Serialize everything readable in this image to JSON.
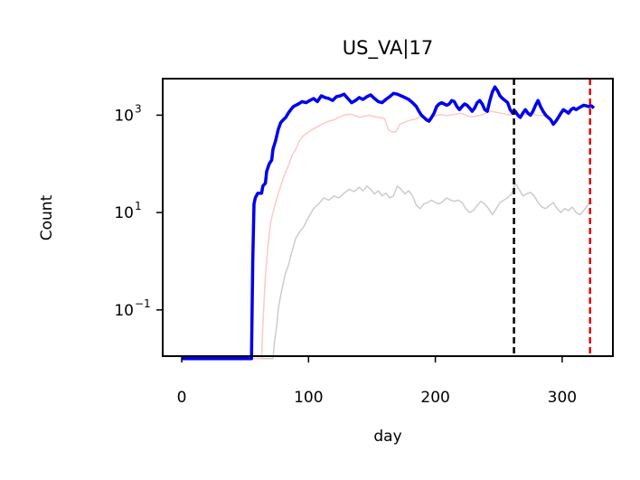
{
  "chart_data": {
    "type": "line",
    "title": "US_VA|17",
    "xlabel": "day",
    "ylabel": "Count",
    "x_ticks": [
      0,
      100,
      200,
      300
    ],
    "y_ticks": [
      {
        "value": 0.1,
        "base": "10",
        "exp": "−1"
      },
      {
        "value": 10,
        "base": "10",
        "exp": "1"
      },
      {
        "value": 1000,
        "base": "10",
        "exp": "3"
      }
    ],
    "xlim": [
      -15,
      340
    ],
    "ylim_log10": [
      -1.95,
      3.75
    ],
    "yscale": "log",
    "grid": false,
    "vlines": [
      {
        "x": 262,
        "color": "#000000",
        "style": "dashed"
      },
      {
        "x": 322,
        "color": "#e00000",
        "style": "dashed"
      }
    ],
    "series": [
      {
        "color": "#cccccc",
        "width": 1.5,
        "points": [
          [
            0,
            0.01
          ],
          [
            72,
            0.01
          ],
          [
            73,
            0.02
          ],
          [
            75,
            0.05
          ],
          [
            76,
            0.1
          ],
          [
            78,
            0.2
          ],
          [
            80,
            0.35
          ],
          [
            82,
            0.6
          ],
          [
            84,
            0.8
          ],
          [
            86,
            1.3
          ],
          [
            88,
            2
          ],
          [
            90,
            3
          ],
          [
            93,
            4
          ],
          [
            96,
            5
          ],
          [
            100,
            8
          ],
          [
            104,
            12
          ],
          [
            108,
            15
          ],
          [
            112,
            20
          ],
          [
            116,
            18
          ],
          [
            120,
            22
          ],
          [
            124,
            20
          ],
          [
            128,
            25
          ],
          [
            132,
            30
          ],
          [
            136,
            27
          ],
          [
            140,
            33
          ],
          [
            143,
            28
          ],
          [
            146,
            35
          ],
          [
            149,
            30
          ],
          [
            152,
            24
          ],
          [
            155,
            28
          ],
          [
            158,
            22
          ],
          [
            161,
            25
          ],
          [
            164,
            20
          ],
          [
            167,
            22
          ],
          [
            170,
            35
          ],
          [
            173,
            30
          ],
          [
            176,
            24
          ],
          [
            179,
            28
          ],
          [
            182,
            22
          ],
          [
            185,
            14
          ],
          [
            188,
            12
          ],
          [
            191,
            15
          ],
          [
            194,
            16
          ],
          [
            197,
            18
          ],
          [
            200,
            16
          ],
          [
            203,
            15
          ],
          [
            206,
            17
          ],
          [
            209,
            20
          ],
          [
            212,
            18
          ],
          [
            215,
            17
          ],
          [
            218,
            18
          ],
          [
            221,
            16
          ],
          [
            224,
            12
          ],
          [
            227,
            10
          ],
          [
            230,
            11
          ],
          [
            233,
            14
          ],
          [
            236,
            17
          ],
          [
            239,
            15
          ],
          [
            242,
            12
          ],
          [
            245,
            9
          ],
          [
            248,
            12
          ],
          [
            251,
            16
          ],
          [
            254,
            18
          ],
          [
            257,
            20
          ],
          [
            260,
            24
          ],
          [
            263,
            40
          ],
          [
            266,
            30
          ],
          [
            269,
            22
          ],
          [
            272,
            24
          ],
          [
            275,
            26
          ],
          [
            278,
            22
          ],
          [
            281,
            16
          ],
          [
            284,
            13
          ],
          [
            287,
            12
          ],
          [
            290,
            14
          ],
          [
            293,
            16
          ],
          [
            296,
            12
          ],
          [
            299,
            10
          ],
          [
            302,
            12
          ],
          [
            305,
            11
          ],
          [
            308,
            13
          ],
          [
            311,
            10
          ],
          [
            314,
            9
          ],
          [
            317,
            11
          ],
          [
            320,
            14
          ],
          [
            322,
            16
          ],
          [
            324,
            15
          ]
        ]
      },
      {
        "color": "#ffc8c8",
        "width": 1.5,
        "points": [
          [
            0,
            0.01
          ],
          [
            63,
            0.01
          ],
          [
            64,
            0.05
          ],
          [
            66,
            0.5
          ],
          [
            68,
            2
          ],
          [
            70,
            6
          ],
          [
            72,
            10
          ],
          [
            75,
            20
          ],
          [
            78,
            35
          ],
          [
            81,
            60
          ],
          [
            84,
            90
          ],
          [
            87,
            150
          ],
          [
            90,
            200
          ],
          [
            93,
            300
          ],
          [
            96,
            380
          ],
          [
            100,
            450
          ],
          [
            104,
            520
          ],
          [
            108,
            600
          ],
          [
            112,
            680
          ],
          [
            116,
            750
          ],
          [
            120,
            800
          ],
          [
            124,
            900
          ],
          [
            128,
            1000
          ],
          [
            132,
            1050
          ],
          [
            136,
            1000
          ],
          [
            140,
            900
          ],
          [
            144,
            950
          ],
          [
            148,
            1000
          ],
          [
            152,
            920
          ],
          [
            156,
            900
          ],
          [
            160,
            850
          ],
          [
            163,
            500
          ],
          [
            166,
            450
          ],
          [
            169,
            460
          ],
          [
            172,
            650
          ],
          [
            175,
            700
          ],
          [
            178,
            750
          ],
          [
            181,
            800
          ],
          [
            184,
            820
          ],
          [
            187,
            900
          ],
          [
            190,
            1000
          ],
          [
            193,
            880
          ],
          [
            196,
            850
          ],
          [
            199,
            950
          ],
          [
            202,
            1000
          ],
          [
            205,
            1020
          ],
          [
            208,
            980
          ],
          [
            212,
            1000
          ],
          [
            216,
            1050
          ],
          [
            220,
            1100
          ],
          [
            224,
            1000
          ],
          [
            228,
            920
          ],
          [
            232,
            950
          ],
          [
            236,
            1000
          ],
          [
            240,
            1100
          ],
          [
            244,
            1200
          ],
          [
            248,
            1150
          ],
          [
            252,
            1100
          ],
          [
            256,
            1050
          ],
          [
            260,
            1000
          ],
          [
            264,
            1100
          ],
          [
            268,
            1000
          ],
          [
            272,
            1050
          ],
          [
            276,
            1100
          ],
          [
            280,
            1000
          ],
          [
            284,
            980
          ],
          [
            288,
            1050
          ]
        ]
      },
      {
        "color": "#0000ee",
        "width": 3.5,
        "points": [
          [
            0,
            0.01
          ],
          [
            55,
            0.01
          ],
          [
            56,
            1
          ],
          [
            57,
            15
          ],
          [
            58,
            20
          ],
          [
            60,
            25
          ],
          [
            63,
            25
          ],
          [
            64,
            35
          ],
          [
            66,
            40
          ],
          [
            67,
            70
          ],
          [
            69,
            100
          ],
          [
            71,
            120
          ],
          [
            72,
            200
          ],
          [
            74,
            300
          ],
          [
            76,
            500
          ],
          [
            78,
            700
          ],
          [
            80,
            800
          ],
          [
            82,
            900
          ],
          [
            84,
            1100
          ],
          [
            86,
            1300
          ],
          [
            88,
            1500
          ],
          [
            90,
            1600
          ],
          [
            92,
            1700
          ],
          [
            95,
            1900
          ],
          [
            98,
            1800
          ],
          [
            101,
            2000
          ],
          [
            104,
            2200
          ],
          [
            107,
            1900
          ],
          [
            110,
            2500
          ],
          [
            113,
            2300
          ],
          [
            116,
            2200
          ],
          [
            119,
            2000
          ],
          [
            122,
            2400
          ],
          [
            125,
            2500
          ],
          [
            128,
            2700
          ],
          [
            131,
            2200
          ],
          [
            134,
            1800
          ],
          [
            137,
            2000
          ],
          [
            140,
            2300
          ],
          [
            143,
            2100
          ],
          [
            146,
            2400
          ],
          [
            149,
            2600
          ],
          [
            152,
            2200
          ],
          [
            155,
            1900
          ],
          [
            158,
            1800
          ],
          [
            161,
            2100
          ],
          [
            164,
            2400
          ],
          [
            167,
            2800
          ],
          [
            170,
            2700
          ],
          [
            173,
            2500
          ],
          [
            176,
            2300
          ],
          [
            179,
            2100
          ],
          [
            182,
            1800
          ],
          [
            185,
            1500
          ],
          [
            187,
            1200
          ],
          [
            189,
            1000
          ],
          [
            191,
            900
          ],
          [
            193,
            800
          ],
          [
            195,
            750
          ],
          [
            197,
            900
          ],
          [
            199,
            1100
          ],
          [
            201,
            1500
          ],
          [
            203,
            1700
          ],
          [
            205,
            1800
          ],
          [
            207,
            1700
          ],
          [
            209,
            1600
          ],
          [
            211,
            1700
          ],
          [
            213,
            2000
          ],
          [
            215,
            1900
          ],
          [
            217,
            1500
          ],
          [
            219,
            1300
          ],
          [
            221,
            1500
          ],
          [
            223,
            1700
          ],
          [
            225,
            1600
          ],
          [
            227,
            1400
          ],
          [
            229,
            1200
          ],
          [
            231,
            1400
          ],
          [
            233,
            1800
          ],
          [
            235,
            2000
          ],
          [
            237,
            1700
          ],
          [
            239,
            1300
          ],
          [
            241,
            1200
          ],
          [
            243,
            2000
          ],
          [
            245,
            3000
          ],
          [
            247,
            3800
          ],
          [
            249,
            3200
          ],
          [
            251,
            2500
          ],
          [
            253,
            2200
          ],
          [
            255,
            2000
          ],
          [
            257,
            1800
          ],
          [
            259,
            1300
          ],
          [
            261,
            1100
          ],
          [
            263,
            1200
          ],
          [
            265,
            1000
          ],
          [
            267,
            900
          ],
          [
            269,
            1100
          ],
          [
            271,
            1300
          ],
          [
            273,
            1100
          ],
          [
            275,
            1000
          ],
          [
            277,
            1200
          ],
          [
            279,
            1600
          ],
          [
            281,
            2000
          ],
          [
            283,
            1500
          ],
          [
            285,
            1200
          ],
          [
            287,
            1000
          ],
          [
            289,
            900
          ],
          [
            291,
            800
          ],
          [
            293,
            650
          ],
          [
            295,
            750
          ],
          [
            297,
            900
          ],
          [
            299,
            1100
          ],
          [
            301,
            1300
          ],
          [
            303,
            1200
          ],
          [
            305,
            1100
          ],
          [
            307,
            1300
          ],
          [
            309,
            1400
          ],
          [
            311,
            1300
          ],
          [
            313,
            1400
          ],
          [
            315,
            1500
          ],
          [
            317,
            1600
          ],
          [
            319,
            1550
          ],
          [
            321,
            1500
          ],
          [
            323,
            1550
          ],
          [
            325,
            1400
          ]
        ]
      }
    ]
  }
}
